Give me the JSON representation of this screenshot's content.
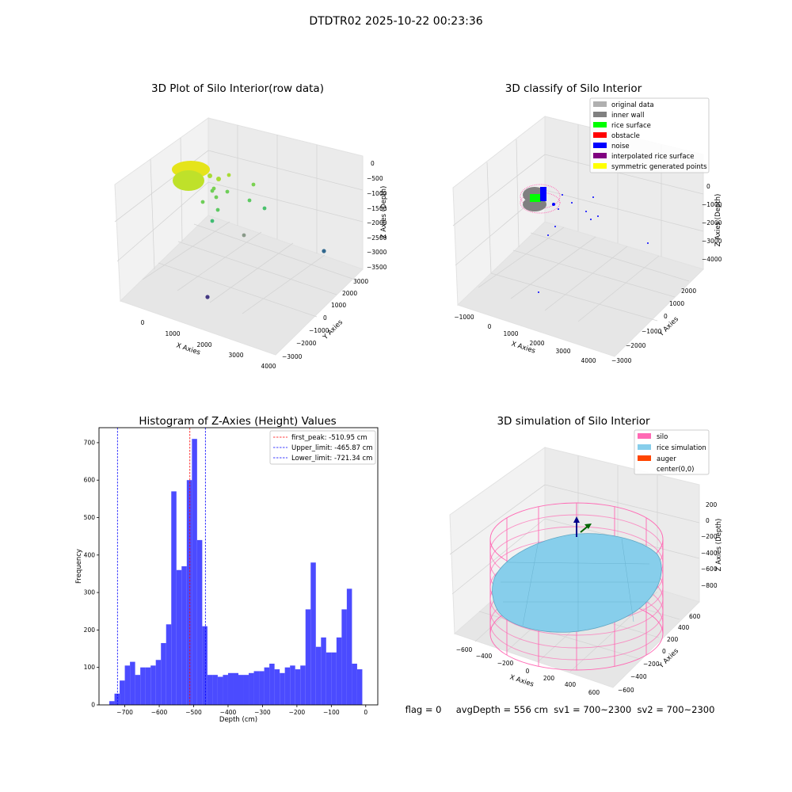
{
  "suptitle": "DTDTR02 2025-10-22 00:23:36",
  "status_line": "flag = 0     avgDepth = 556 cm  sv1 = 700~2300  sv2 = 700~2300",
  "colors": {
    "hist_bar": "#4b4bff",
    "first_peak": "#ff0000",
    "limit": "#0000ff",
    "silo_wire": "#ff69b4",
    "rice_sim": "#87ceeb",
    "auger": "#ff4500",
    "pane": "#f2f2f2",
    "grid": "#d9d9d9"
  },
  "chart_data": [
    {
      "type": "scatter",
      "title": "3D Plot of Silo Interior(row data)",
      "xlabel": "X Axies",
      "ylabel": "Y Axies",
      "zlabel": "Z Axies (Depth)",
      "x_ticks": [
        "0",
        "1000",
        "2000",
        "3000",
        "4000"
      ],
      "y_ticks": [
        "−3000",
        "−2000",
        "−1000",
        "0",
        "1000",
        "2000",
        "3000"
      ],
      "z_ticks": [
        "0",
        "−500",
        "−1000",
        "−1500",
        "−2000",
        "−2500",
        "−3000",
        "−3500"
      ],
      "colormap": "viridis (depth)"
    },
    {
      "type": "scatter",
      "title": "3D classify of Silo Interior",
      "xlabel": "X Axies",
      "ylabel": "Y Axies",
      "zlabel": "Z Axies (Depth)",
      "x_ticks": [
        "−1000",
        "0",
        "1000",
        "2000",
        "3000",
        "4000"
      ],
      "y_ticks": [
        "−3000",
        "−2000",
        "−1000",
        "0",
        "1000",
        "2000"
      ],
      "z_ticks": [
        "0",
        "−1000",
        "−2000",
        "−3000",
        "−4000"
      ],
      "legend_position": "top-right",
      "legend": [
        {
          "label": "original data",
          "color": "#b0b0b0"
        },
        {
          "label": "inner wall",
          "color": "#808080"
        },
        {
          "label": "rice surface",
          "color": "#00ff00"
        },
        {
          "label": "obstacle",
          "color": "#ff0000"
        },
        {
          "label": "noise",
          "color": "#0000ff"
        },
        {
          "label": "interpolated rice surface",
          "color": "#800080"
        },
        {
          "label": "symmetric generated points",
          "color": "#ffff00"
        }
      ]
    },
    {
      "type": "bar",
      "title": "Histogram of Z-Axies (Height) Values",
      "xlabel": "Depth (cm)",
      "ylabel": "Frequency",
      "xlim": [
        -775,
        35
      ],
      "ylim": [
        0,
        740
      ],
      "x_ticks": [
        -700,
        -600,
        -500,
        -400,
        -300,
        -200,
        -100,
        0
      ],
      "y_ticks": [
        0,
        100,
        200,
        300,
        400,
        500,
        600,
        700
      ],
      "bin_start": -745,
      "bin_width": 15,
      "values": [
        10,
        30,
        65,
        105,
        115,
        80,
        100,
        100,
        105,
        120,
        165,
        215,
        570,
        360,
        370,
        600,
        710,
        440,
        210,
        80,
        80,
        75,
        80,
        85,
        85,
        80,
        80,
        85,
        90,
        90,
        100,
        110,
        95,
        85,
        100,
        105,
        95,
        105,
        255,
        380,
        155,
        180,
        140,
        140,
        180,
        255,
        310,
        110,
        95
      ],
      "lines": [
        {
          "label": "first_peak: -510.95 cm",
          "value": -510.95,
          "color": "#ff0000"
        },
        {
          "label": "Upper_limit: -465.87 cm",
          "value": -465.87,
          "color": "#0000ff"
        },
        {
          "label": "Lower_limit: -721.34 cm",
          "value": -721.34,
          "color": "#0000ff"
        }
      ],
      "legend_position": "top-right"
    },
    {
      "type": "area",
      "title": "3D simulation of Silo Interior",
      "xlabel": "X Axies",
      "ylabel": "Y Axies",
      "zlabel": "Z Axies (Depth)",
      "x_ticks": [
        "−600",
        "−400",
        "−200",
        "0",
        "200",
        "400",
        "600"
      ],
      "y_ticks": [
        "−600",
        "−400",
        "−200",
        "0",
        "200",
        "400",
        "600"
      ],
      "z_ticks": [
        "200",
        "0",
        "−200",
        "−400",
        "−600",
        "−800"
      ],
      "legend_position": "top-right",
      "legend": [
        {
          "label": "silo",
          "color": "#ff69b4"
        },
        {
          "label": "rice simulation",
          "color": "#87ceeb"
        },
        {
          "label": "auger",
          "color": "#ff4500"
        },
        {
          "label": "center(0,0)",
          "color": ""
        }
      ]
    }
  ]
}
